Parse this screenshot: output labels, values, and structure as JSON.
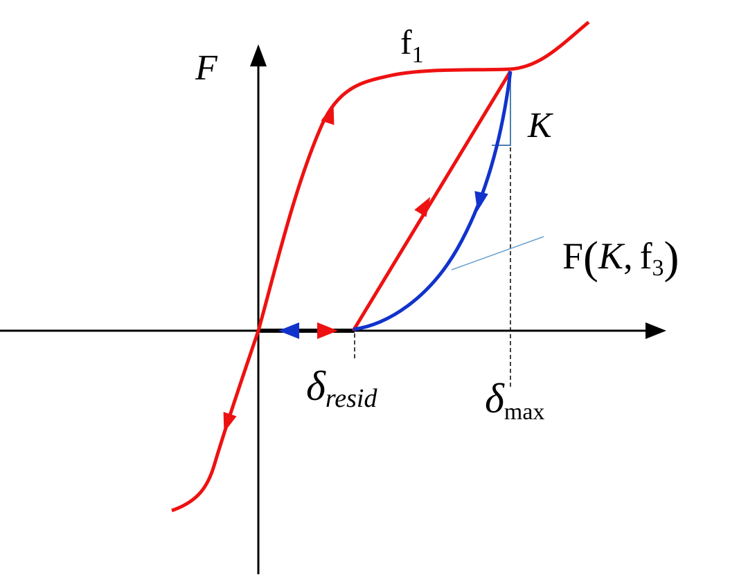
{
  "y_axis_label": "F",
  "loading_curve_label": {
    "base": "f",
    "sub": "1"
  },
  "stiffness_label": "K",
  "unloading_curve_label": {
    "func": "F",
    "open": "(",
    "arg": "K",
    "sep": ",",
    "base": "f",
    "sub": "3",
    "close": ")"
  },
  "residual_label": {
    "symbol": "δ",
    "sub": "resid"
  },
  "max_label": {
    "symbol": "δ",
    "sub": "max"
  }
}
